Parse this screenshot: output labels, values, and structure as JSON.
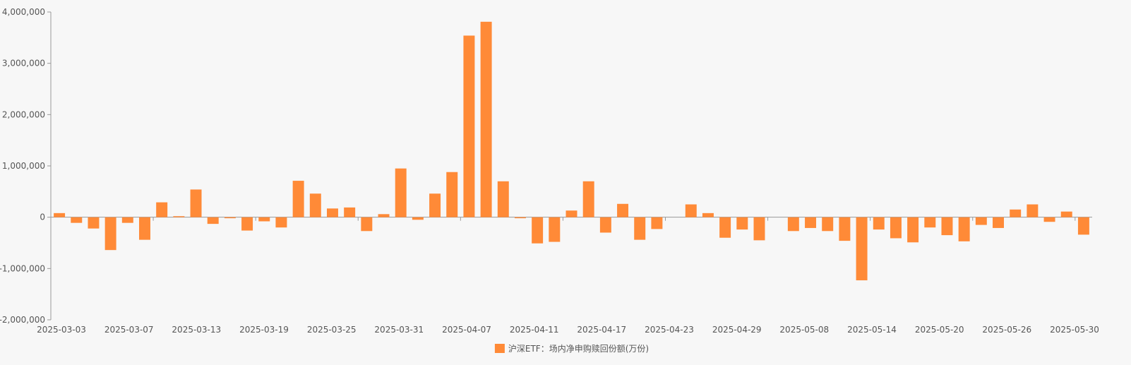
{
  "chart_data": {
    "type": "bar",
    "title": "",
    "xlabel": "",
    "ylabel": "",
    "ylim": [
      -2000000,
      4000000
    ],
    "y_ticks": [
      4000000,
      3000000,
      2000000,
      1000000,
      0,
      -1000000,
      -2000000
    ],
    "y_tick_labels": [
      "4,000,000",
      "3,000,000",
      "2,000,000",
      "1,000,000",
      "0",
      "-1,000,000",
      "-2,000,000"
    ],
    "x_tick_labels": [
      "2025-03-03",
      "2025-03-07",
      "2025-03-13",
      "2025-03-19",
      "2025-03-25",
      "2025-03-31",
      "2025-04-07",
      "2025-04-11",
      "2025-04-17",
      "2025-04-23",
      "2025-04-29",
      "2025-05-08",
      "2025-05-14",
      "2025-05-20",
      "2025-05-26",
      "2025-05-30"
    ],
    "grid": false,
    "legend_position": "bottom-center",
    "bar_color": "#ff8a37",
    "categories": [
      "2025-03-03",
      "2025-03-04",
      "2025-03-05",
      "2025-03-06",
      "2025-03-07",
      "2025-03-10",
      "2025-03-11",
      "2025-03-12",
      "2025-03-13",
      "2025-03-14",
      "2025-03-17",
      "2025-03-18",
      "2025-03-19",
      "2025-03-20",
      "2025-03-21",
      "2025-03-24",
      "2025-03-25",
      "2025-03-26",
      "2025-03-27",
      "2025-03-28",
      "2025-03-31",
      "2025-04-01",
      "2025-04-02",
      "2025-04-03",
      "2025-04-07",
      "2025-04-08",
      "2025-04-09",
      "2025-04-10",
      "2025-04-11",
      "2025-04-14",
      "2025-04-15",
      "2025-04-16",
      "2025-04-17",
      "2025-04-18",
      "2025-04-21",
      "2025-04-22",
      "2025-04-23",
      "2025-04-24",
      "2025-04-25",
      "2025-04-28",
      "2025-04-29",
      "2025-04-30",
      "2025-05-06",
      "2025-05-07",
      "2025-05-08",
      "2025-05-09",
      "2025-05-12",
      "2025-05-13",
      "2025-05-14",
      "2025-05-15",
      "2025-05-16",
      "2025-05-19",
      "2025-05-20",
      "2025-05-21",
      "2025-05-22",
      "2025-05-23",
      "2025-05-26",
      "2025-05-27",
      "2025-05-28",
      "2025-05-29",
      "2025-05-30"
    ],
    "series": [
      {
        "name": "沪深ETF：场内净申购赎回份额(万份)",
        "values": [
          80000,
          -110000,
          -220000,
          -640000,
          -110000,
          -440000,
          290000,
          20000,
          540000,
          -130000,
          -20000,
          -260000,
          -80000,
          -200000,
          710000,
          460000,
          170000,
          190000,
          -270000,
          60000,
          950000,
          -50000,
          460000,
          880000,
          3540000,
          3810000,
          700000,
          -20000,
          -510000,
          -480000,
          130000,
          700000,
          -300000,
          260000,
          -440000,
          -230000,
          0,
          250000,
          80000,
          -400000,
          -240000,
          -450000,
          0,
          -270000,
          -210000,
          -270000,
          -460000,
          -1230000,
          -240000,
          -410000,
          -490000,
          -200000,
          -350000,
          -470000,
          -150000,
          -210000,
          150000,
          250000,
          -90000,
          110000,
          -340000
        ]
      }
    ]
  }
}
